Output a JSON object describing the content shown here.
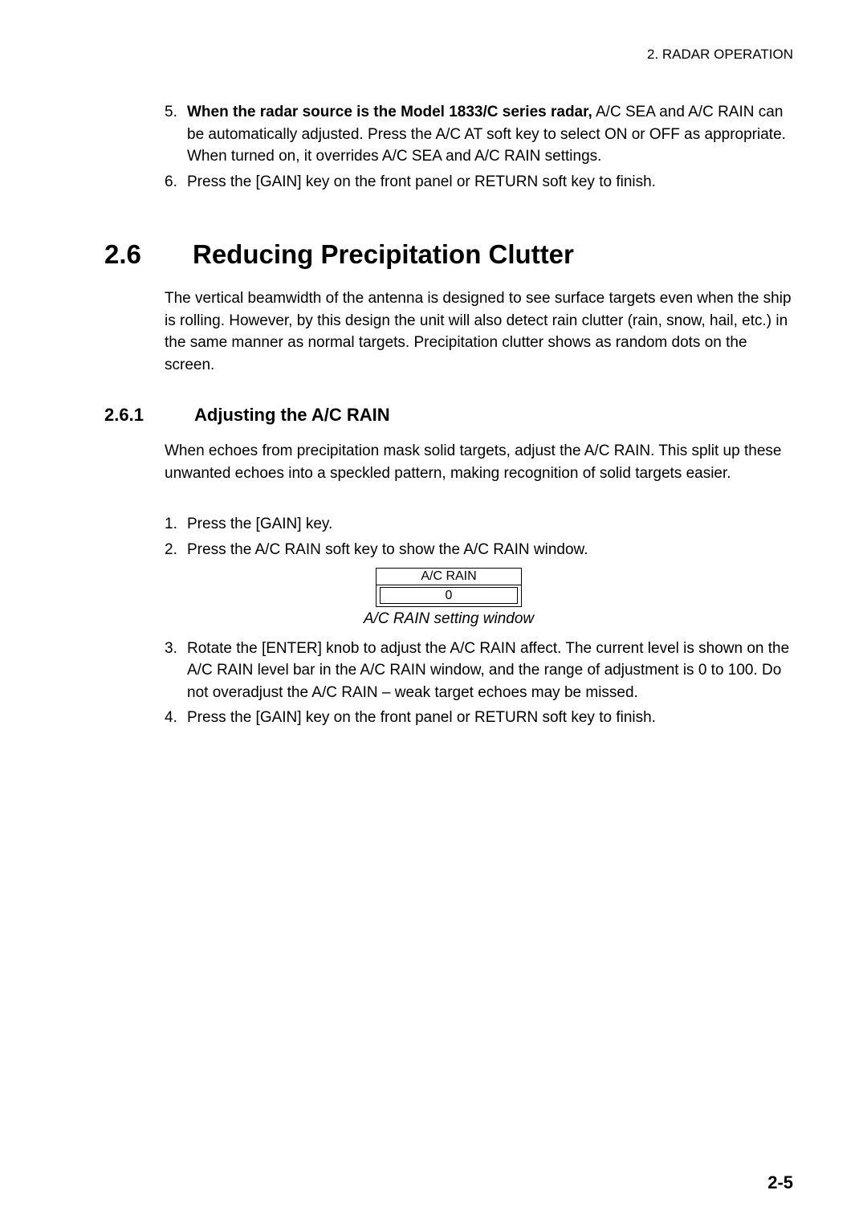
{
  "header": {
    "text": "2. RADAR OPERATION"
  },
  "intro_list": [
    {
      "num": "5.",
      "bold_lead": "When the radar source is the Model 1833/C series radar,",
      "rest": " A/C SEA and A/C RAIN can be automatically adjusted. Press the A/C AT soft key to select ON or OFF as appropriate. When turned on, it overrides A/C SEA and A/C RAIN settings."
    },
    {
      "num": "6.",
      "rest": "Press the [GAIN] key on the front panel or RETURN soft key to finish."
    }
  ],
  "section": {
    "num": "2.6",
    "title": "Reducing Precipitation Clutter",
    "para": "The vertical beamwidth of the antenna is designed to see surface targets even when the ship is rolling. However, by this design the unit will also detect rain clutter (rain, snow, hail, etc.) in the same manner as normal targets. Precipitation clutter shows as random dots on the screen."
  },
  "subsection": {
    "num": "2.6.1",
    "title": "Adjusting the A/C RAIN",
    "para": "When echoes from precipitation mask solid targets, adjust the A/C RAIN. This split up these unwanted echoes into a speckled pattern, making recognition of solid targets easier.",
    "steps": [
      {
        "num": "1.",
        "text": "Press the [GAIN] key."
      },
      {
        "num": "2.",
        "text": "Press the A/C RAIN soft key to show the A/C RAIN window."
      }
    ],
    "diagram": {
      "title": "A/C RAIN",
      "value": "0"
    },
    "caption": "A/C RAIN setting window",
    "steps2": [
      {
        "num": "3.",
        "text": "Rotate the [ENTER] knob to adjust the A/C RAIN affect. The current level is shown on the A/C RAIN level bar in the A/C RAIN window, and the range of adjustment is 0 to 100. Do not overadjust the A/C RAIN – weak target echoes may be missed."
      },
      {
        "num": "4.",
        "text": "Press the [GAIN] key on the front panel or RETURN soft key to finish."
      }
    ]
  },
  "footer": {
    "page": "2-5"
  }
}
